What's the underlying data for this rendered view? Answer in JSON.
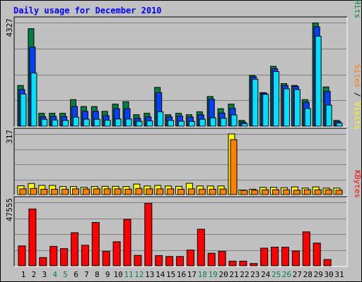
{
  "colors": {
    "page_bg": "#ffffff",
    "frame": "#c0c0c0",
    "panel": "#c0c0c0",
    "title": "#0000ff",
    "hits": "#008040",
    "files": "#0040ff",
    "pages": "#00e0ff",
    "visits": "#ffff00",
    "sites": "#ff8000",
    "kbytes": "#ff0000",
    "weekday_label": "#000000",
    "weekend_label": "#00805a"
  },
  "chart_data": {
    "type": "bar",
    "title": "Daily usage for December 2010",
    "days": [
      "1",
      "2",
      "3",
      "4",
      "5",
      "6",
      "7",
      "8",
      "9",
      "10",
      "11",
      "12",
      "13",
      "14",
      "15",
      "16",
      "17",
      "18",
      "19",
      "20",
      "21",
      "22",
      "23",
      "24",
      "25",
      "26",
      "27",
      "28",
      "29",
      "30",
      "31"
    ],
    "weekend_days": [
      "4",
      "5",
      "11",
      "12",
      "18",
      "19",
      "25",
      "26"
    ],
    "panels": [
      {
        "id": "hits_files_pages",
        "max_label": "4327",
        "ylim": [
          0,
          4327
        ],
        "legend": [
          {
            "text": "Pages",
            "color": "#00e0ff"
          },
          {
            "text": " / ",
            "color": "#000000"
          },
          {
            "text": "Files",
            "color": "#0040ff"
          },
          {
            "text": " / ",
            "color": "#000000"
          },
          {
            "text": "Hits",
            "color": "#008040"
          }
        ],
        "series": [
          {
            "name": "Hits",
            "values": [
              1700,
              4070,
              540,
              540,
              540,
              1110,
              820,
              820,
              620,
              920,
              1020,
              480,
              540,
              1620,
              480,
              540,
              480,
              600,
              1240,
              730,
              920,
              240,
              2120,
              1400,
              2500,
              1780,
              1700,
              1110,
              4310,
              1640,
              240
            ]
          },
          {
            "name": "Files",
            "values": [
              1530,
              3300,
              400,
              410,
              400,
              820,
              620,
              620,
              440,
              730,
              730,
              330,
              390,
              1400,
              390,
              420,
              380,
              470,
              1130,
              550,
              750,
              170,
              2060,
              1380,
              2400,
              1700,
              1660,
              1000,
              4150,
              1450,
              190
            ]
          },
          {
            "name": "Pages",
            "values": [
              1340,
              2220,
              290,
              260,
              240,
              380,
              290,
              290,
              250,
              300,
              300,
              200,
              220,
              600,
              240,
              210,
              200,
              290,
              350,
              330,
              470,
              110,
              1960,
              1330,
              2280,
              1560,
              1530,
              740,
              3760,
              880,
              130
            ]
          }
        ]
      },
      {
        "id": "visits_sites",
        "max_label": "317",
        "ylim": [
          0,
          317
        ],
        "legend": [
          {
            "text": "Sites",
            "color": "#ff8000"
          },
          {
            "text": " / ",
            "color": "#000000"
          },
          {
            "text": "Visits",
            "color": "#ffff00"
          }
        ],
        "series": [
          {
            "name": "Visits",
            "values": [
              46,
              58,
              48,
              48,
              42,
              42,
              38,
              42,
              43,
              43,
              42,
              55,
              45,
              48,
              45,
              43,
              59,
              45,
              45,
              45,
              317,
              24,
              28,
              38,
              38,
              36,
              40,
              34,
              40,
              34,
              34
            ]
          },
          {
            "name": "Sites",
            "values": [
              30,
              32,
              28,
              28,
              28,
              30,
              29,
              30,
              30,
              30,
              28,
              32,
              30,
              30,
              30,
              28,
              30,
              28,
              28,
              29,
              287,
              22,
              23,
              25,
              25,
              25,
              23,
              25,
              25,
              25,
              23
            ]
          }
        ]
      },
      {
        "id": "kbytes",
        "max_label": "47555",
        "ylim": [
          0,
          47555
        ],
        "legend": [
          {
            "text": "KBytes",
            "color": "#ff0000"
          }
        ],
        "series": [
          {
            "name": "KBytes",
            "values": [
              14900,
              42600,
              6200,
              14600,
              12900,
              24800,
              15400,
              32500,
              10800,
              18000,
              34800,
              7800,
              46800,
              7600,
              7000,
              7000,
              11900,
              27400,
              9400,
              10800,
              3500,
              3500,
              1700,
              13200,
              14000,
              13900,
              11100,
              25400,
              17000,
              4700,
              null
            ]
          }
        ]
      }
    ]
  }
}
